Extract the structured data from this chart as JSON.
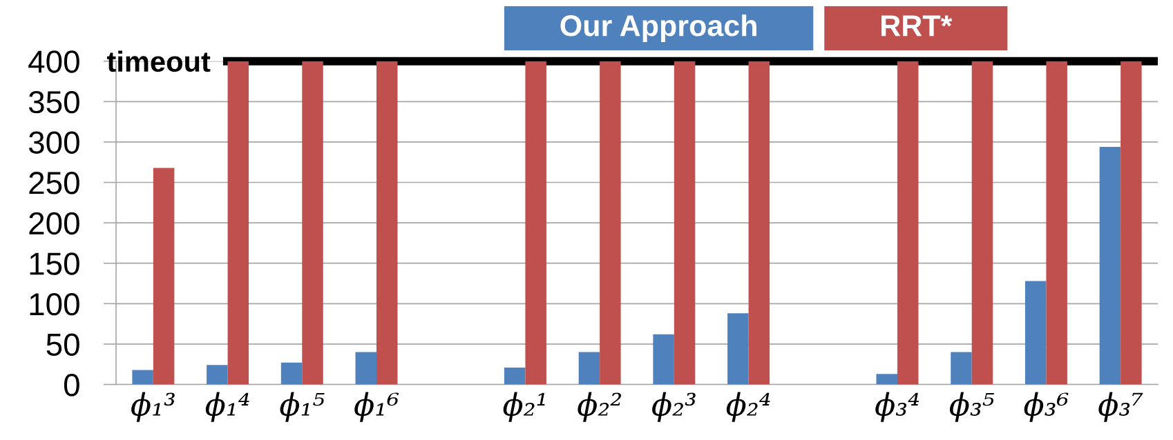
{
  "chart_data": {
    "type": "bar",
    "categories": [
      "ϕ₁³",
      "ϕ₁⁴",
      "ϕ₁⁵",
      "ϕ₁⁶",
      null,
      "ϕ₂¹",
      "ϕ₂²",
      "ϕ₂³",
      "ϕ₂⁴",
      null,
      "ϕ₃⁴",
      "ϕ₃⁵",
      "ϕ₃⁶",
      "ϕ₃⁷"
    ],
    "series": [
      {
        "name": "Our Approach",
        "color": "#4f81bd",
        "values": [
          18,
          24,
          27,
          40,
          null,
          21,
          40,
          62,
          88,
          null,
          13,
          40,
          128,
          294
        ]
      },
      {
        "name": "RRT*",
        "color": "#c0504d",
        "values": [
          268,
          400,
          400,
          400,
          null,
          400,
          400,
          400,
          400,
          null,
          400,
          400,
          400,
          400
        ]
      }
    ],
    "ylim": [
      0,
      400
    ],
    "yticks": [
      0,
      50,
      100,
      150,
      200,
      250,
      300,
      350,
      400
    ],
    "grid": "y",
    "legend": "top",
    "ref_lines": [
      {
        "axis": "y",
        "value": 400,
        "label": "timeout",
        "color": "#000000"
      }
    ]
  }
}
